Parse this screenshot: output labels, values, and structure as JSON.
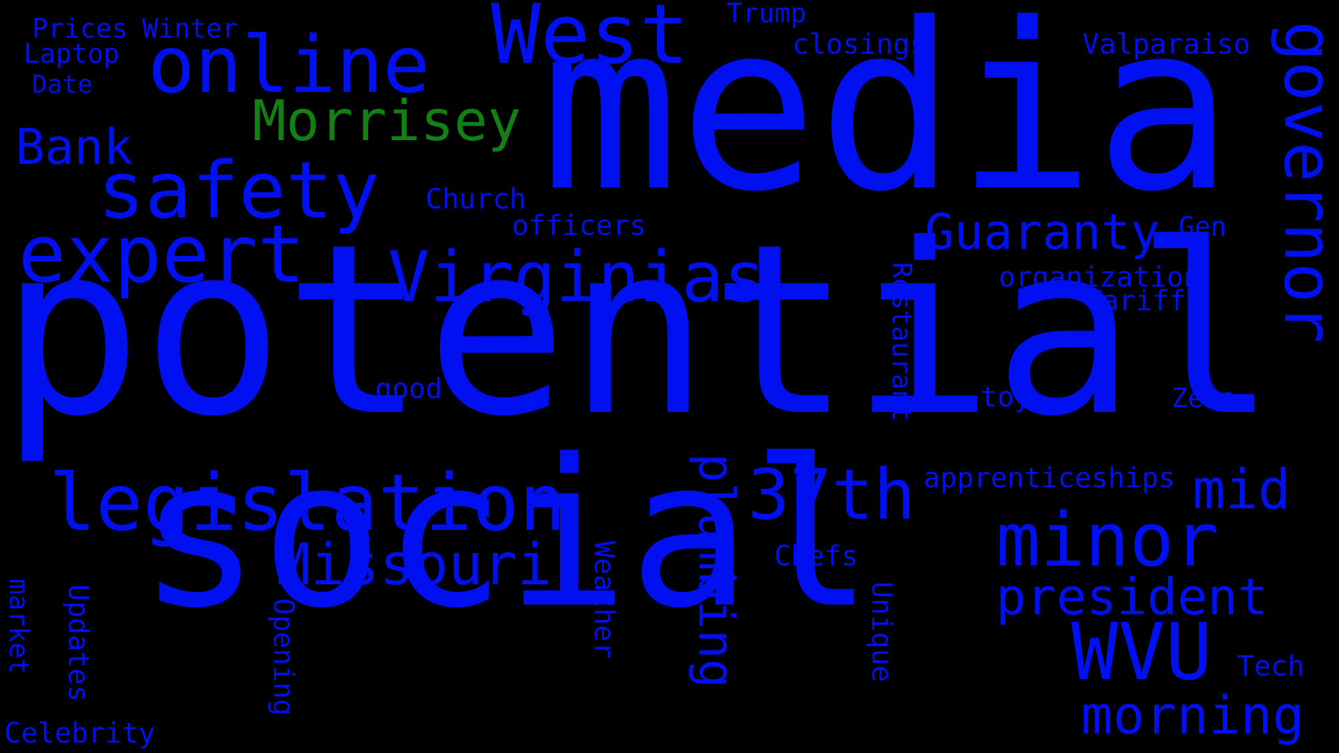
{
  "words": {
    "potential": "potential",
    "social": "social",
    "media": "media",
    "online": "online",
    "west": "West",
    "morrisey": "Morrisey",
    "safety": "safety",
    "expert": "expert",
    "virginias": "Virginias",
    "legislation": "legislation",
    "missouri": "Missouri",
    "bank": "Bank",
    "guaranty": "Guaranty",
    "governor": "governor",
    "thirty_seventh": "37th",
    "minor": "minor",
    "president": "president",
    "wvu": "WVU",
    "morning": "morning",
    "mid": "mid",
    "plumbing": "plumbing",
    "prices": "Prices",
    "winter": "Winter",
    "laptop": "Laptop",
    "date": "Date",
    "trump": "Trump",
    "closings": "closings",
    "valparaiso": "Valparaiso",
    "church": "Church",
    "officers": "officers",
    "gen": "Gen",
    "organization": "organization",
    "tariffs": "Tariffs",
    "restaurant": "Restaurant",
    "good": "good",
    "toy": "toy",
    "zers": "Zers",
    "apprenticeships": "apprenticeships",
    "chefs": "Chefs",
    "weather": "Weather",
    "opening": "Opening",
    "unique": "Unique",
    "tech": "Tech",
    "market": "market",
    "updates": "Updates",
    "celebrity": "Celebrity"
  },
  "colors": {
    "background": "#000000",
    "primary": "#0010f0",
    "accent": "#138014"
  }
}
